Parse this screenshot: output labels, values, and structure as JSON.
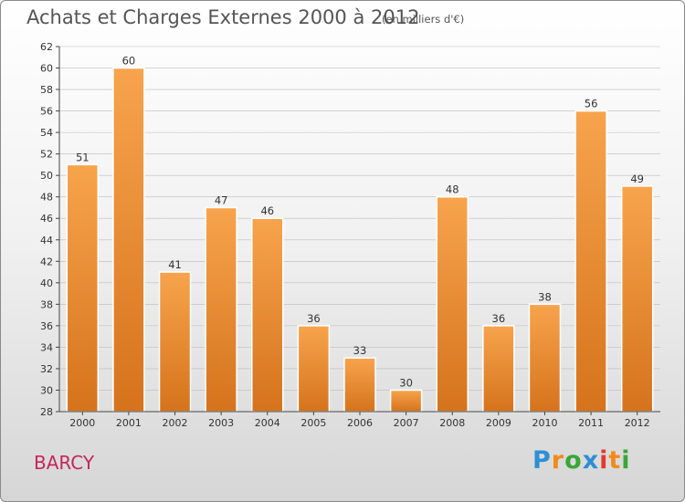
{
  "title": "Achats et Charges Externes 2000 à 2012",
  "subtitle": "(en milliers d'€)",
  "commune": "BARCY",
  "logo": {
    "text": "Proxiti",
    "letters": [
      {
        "ch": "P",
        "color": "#2d8fd6"
      },
      {
        "ch": "r",
        "color": "#f08a1c"
      },
      {
        "ch": "o",
        "color": "#3aa635"
      },
      {
        "ch": "x",
        "color": "#2d8fd6"
      },
      {
        "ch": "i",
        "color": "#e23a2e"
      },
      {
        "ch": "t",
        "color": "#f08a1c"
      },
      {
        "ch": "i",
        "color": "#3aa635"
      }
    ]
  },
  "colors": {
    "bar_light": "#f7a44d",
    "bar_dark": "#d5731c",
    "axis": "#444444",
    "grid": "#bbbbbb"
  },
  "chart_data": {
    "type": "bar",
    "categories": [
      "2000",
      "2001",
      "2002",
      "2003",
      "2004",
      "2005",
      "2006",
      "2007",
      "2008",
      "2009",
      "2010",
      "2011",
      "2012"
    ],
    "values": [
      51,
      60,
      41,
      47,
      46,
      36,
      33,
      30,
      48,
      36,
      38,
      56,
      49
    ],
    "ylim": [
      28,
      62
    ],
    "yticks": [
      28,
      30,
      32,
      34,
      36,
      38,
      40,
      42,
      44,
      46,
      48,
      50,
      52,
      54,
      56,
      58,
      60,
      62
    ],
    "grid": true,
    "legend": "none",
    "xlabel": "",
    "ylabel": ""
  }
}
